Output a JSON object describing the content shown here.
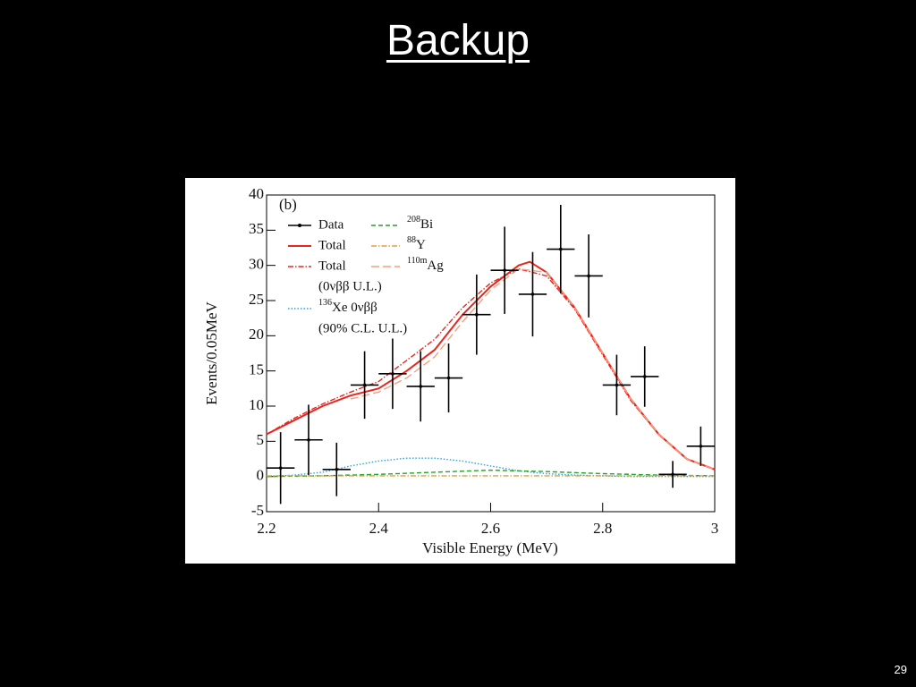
{
  "slide": {
    "title": "Backup",
    "page_number": "29"
  },
  "chart_data": {
    "type": "line",
    "panel_label": "(b)",
    "xlabel": "Visible Energy (MeV)",
    "ylabel": "Events/0.05MeV",
    "xlim": [
      2.2,
      3
    ],
    "ylim": [
      -5,
      40
    ],
    "xticks": [
      2.2,
      2.4,
      2.6,
      2.8,
      3
    ],
    "yticks": [
      -5,
      0,
      5,
      10,
      15,
      20,
      25,
      30,
      35,
      40
    ],
    "series": [
      {
        "name": "Data",
        "color": "#000000",
        "style": "points",
        "x": [
          2.225,
          2.275,
          2.325,
          2.375,
          2.425,
          2.475,
          2.525,
          2.575,
          2.625,
          2.675,
          2.725,
          2.775,
          2.825,
          2.875,
          2.925,
          2.975
        ],
        "values": [
          1.2,
          5.2,
          1.0,
          13.0,
          14.6,
          12.8,
          14.0,
          23.0,
          29.3,
          25.9,
          32.3,
          28.5,
          13.0,
          14.2,
          0.3,
          4.3
        ],
        "errors": [
          5.1,
          5.0,
          3.8,
          4.8,
          5.0,
          5.0,
          4.9,
          5.7,
          6.2,
          6.0,
          6.3,
          5.9,
          4.3,
          4.3,
          1.9,
          2.8
        ]
      },
      {
        "name": "Total",
        "color": "#e8261f",
        "style": "solid",
        "x": [
          2.2,
          2.25,
          2.3,
          2.35,
          2.4,
          2.45,
          2.5,
          2.55,
          2.6,
          2.65,
          2.67,
          2.7,
          2.75,
          2.8,
          2.85,
          2.9,
          2.95,
          3
        ],
        "values": [
          6,
          8,
          10,
          11.5,
          12.5,
          15,
          18,
          23,
          27,
          30,
          30.5,
          29,
          24,
          17.5,
          11,
          6,
          2.5,
          1
        ]
      },
      {
        "name": "Total",
        "note": "(0νββ U.L.)",
        "color": "#e8261f",
        "style": "dashdot",
        "x": [
          2.2,
          2.25,
          2.3,
          2.35,
          2.4,
          2.45,
          2.5,
          2.55,
          2.6,
          2.65,
          2.7,
          2.75,
          2.8,
          2.85,
          2.9,
          2.95,
          3
        ],
        "values": [
          6,
          8.3,
          10.3,
          12,
          13.5,
          16.5,
          19.5,
          24,
          27.5,
          29.5,
          28.5,
          23.8,
          17.3,
          10.8,
          6,
          2.5,
          1
        ]
      },
      {
        "isotope": "136",
        "name": "Xe 0νββ",
        "note": "(90% C.L. U.L.)",
        "color": "#29a3e0",
        "style": "dotted",
        "x": [
          2.2,
          2.25,
          2.3,
          2.35,
          2.4,
          2.45,
          2.5,
          2.55,
          2.6,
          2.65,
          2.7,
          2.75,
          2.8,
          2.85,
          2.9,
          2.95,
          3
        ],
        "values": [
          0,
          0.2,
          0.6,
          1.5,
          2.2,
          2.6,
          2.6,
          2.2,
          1.5,
          0.8,
          0.4,
          0.2,
          0.1,
          0,
          0,
          0,
          0
        ]
      },
      {
        "isotope": "208",
        "name": "Bi",
        "color": "#2a9d2a",
        "style": "dashed",
        "x": [
          2.2,
          2.3,
          2.4,
          2.5,
          2.6,
          2.7,
          2.8,
          2.9,
          3
        ],
        "values": [
          0,
          0.1,
          0.3,
          0.6,
          0.9,
          0.7,
          0.4,
          0.2,
          0.1
        ]
      },
      {
        "isotope": "88",
        "name": "Y",
        "color": "#e0a040",
        "style": "dashdot",
        "x": [
          2.2,
          3
        ],
        "values": [
          0.1,
          0.1
        ]
      },
      {
        "isotope": "110m",
        "name": "Ag",
        "color": "#f4a080",
        "style": "longdash",
        "x": [
          2.35,
          2.4,
          2.45,
          2.5,
          2.55,
          2.6,
          2.65,
          2.7,
          2.75,
          2.8,
          2.85,
          2.9,
          2.95,
          3
        ],
        "values": [
          11,
          12,
          14,
          17,
          22,
          26.5,
          29.5,
          29,
          24,
          17.5,
          11,
          6,
          2.5,
          1
        ]
      }
    ]
  }
}
